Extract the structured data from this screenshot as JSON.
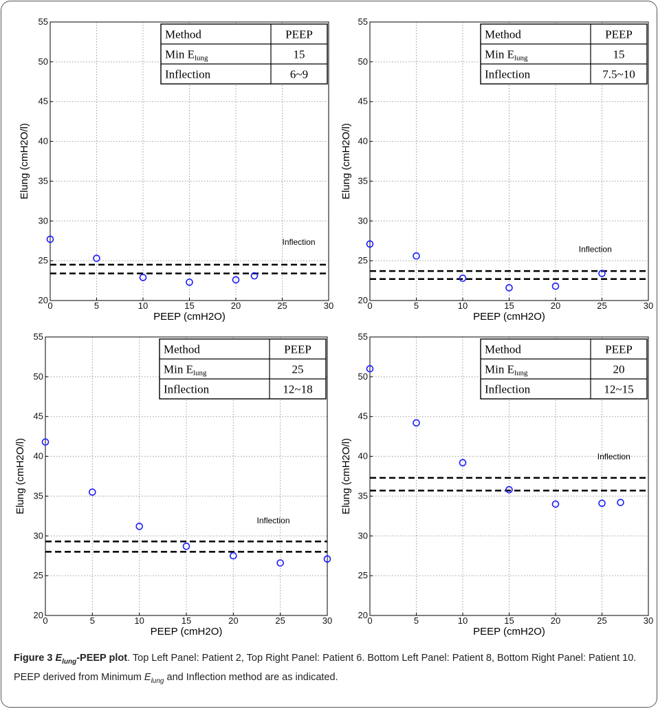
{
  "chart_data": [
    {
      "type": "scatter",
      "panel": "top-left",
      "xlabel": "PEEP (cmH2O)",
      "ylabel": "Elung (cmH2O/l)",
      "xlim": [
        0,
        30
      ],
      "ylim": [
        20,
        55
      ],
      "xticks": [
        "0",
        "5",
        "10",
        "15",
        "20",
        "25",
        "30"
      ],
      "yticks": [
        "20",
        "25",
        "30",
        "35",
        "40",
        "45",
        "50",
        "55"
      ],
      "grid": true,
      "points": [
        [
          0,
          27.7
        ],
        [
          5,
          25.3
        ],
        [
          10,
          22.9
        ],
        [
          15,
          22.3
        ],
        [
          20,
          22.6
        ],
        [
          22,
          23.1
        ]
      ],
      "inflection_lines": [
        24.5,
        23.4
      ],
      "annotation": "Inflection",
      "annotation_pos": [
        25,
        27
      ],
      "table": {
        "header": [
          "Method",
          "PEEP"
        ],
        "min_value": "15",
        "inflection_label": "Inflection",
        "inflection_value": "6~9"
      }
    },
    {
      "type": "scatter",
      "panel": "top-right",
      "xlabel": "PEEP (cmH2O)",
      "ylabel": "Elung (cmH2O/l)",
      "xlim": [
        0,
        30
      ],
      "ylim": [
        20,
        55
      ],
      "xticks": [
        "0",
        "5",
        "10",
        "15",
        "20",
        "25",
        "30"
      ],
      "yticks": [
        "20",
        "25",
        "30",
        "35",
        "40",
        "45",
        "50",
        "55"
      ],
      "grid": true,
      "points": [
        [
          0,
          27.1
        ],
        [
          5,
          25.6
        ],
        [
          10,
          22.8
        ],
        [
          15,
          21.6
        ],
        [
          20,
          21.8
        ],
        [
          25,
          23.4
        ]
      ],
      "inflection_lines": [
        23.7,
        22.7
      ],
      "annotation": "Inflection",
      "annotation_pos": [
        22.5,
        26.1
      ],
      "table": {
        "header": [
          "Method",
          "PEEP"
        ],
        "min_value": "15",
        "inflection_label": "Inflection",
        "inflection_value": "7.5~10"
      }
    },
    {
      "type": "scatter",
      "panel": "bottom-left",
      "xlabel": "PEEP (cmH2O)",
      "ylabel": "Elung (cmH2O/l)",
      "xlim": [
        0,
        30
      ],
      "ylim": [
        20,
        55
      ],
      "xticks": [
        "0",
        "5",
        "10",
        "15",
        "20",
        "25",
        "30"
      ],
      "yticks": [
        "20",
        "25",
        "30",
        "35",
        "40",
        "45",
        "50",
        "55"
      ],
      "grid": true,
      "points": [
        [
          0,
          41.8
        ],
        [
          5,
          35.5
        ],
        [
          10,
          31.2
        ],
        [
          15,
          28.7
        ],
        [
          20,
          27.5
        ],
        [
          25,
          26.6
        ],
        [
          30,
          27.1
        ]
      ],
      "inflection_lines": [
        29.3,
        28.0
      ],
      "annotation": "Inflection",
      "annotation_pos": [
        22.5,
        31.6
      ],
      "table": {
        "header": [
          "Method",
          "PEEP"
        ],
        "min_value": "25",
        "inflection_label": "Inflection",
        "inflection_value": "12~18"
      }
    },
    {
      "type": "scatter",
      "panel": "bottom-right",
      "xlabel": "PEEP (cmH2O)",
      "ylabel": "Elung (cmH2O/l)",
      "xlim": [
        0,
        30
      ],
      "ylim": [
        20,
        55
      ],
      "xticks": [
        "0",
        "5",
        "10",
        "15",
        "20",
        "25",
        "30"
      ],
      "yticks": [
        "20",
        "25",
        "30",
        "35",
        "40",
        "45",
        "50",
        "55"
      ],
      "grid": true,
      "points": [
        [
          0,
          51.0
        ],
        [
          5,
          44.2
        ],
        [
          10,
          39.2
        ],
        [
          15,
          35.8
        ],
        [
          20,
          34.0
        ],
        [
          25,
          34.1
        ],
        [
          27,
          34.2
        ]
      ],
      "inflection_lines": [
        37.3,
        35.7
      ],
      "annotation": "Inflection",
      "annotation_pos": [
        24.5,
        39.6
      ],
      "table": {
        "header": [
          "Method",
          "PEEP"
        ],
        "min_value": "20",
        "inflection_label": "Inflection",
        "inflection_value": "12~15"
      }
    }
  ],
  "table_min_label_main": "Min E",
  "table_min_label_sub": "lung",
  "colors": {
    "marker": "#1a1aff",
    "line": "#000000",
    "grid": "#9a9a9a"
  },
  "caption": {
    "figure_label": "Figure 3",
    "title_italic": "E",
    "title_sub": "lung",
    "title_rest": "-PEEP plot",
    "text_1": ". Top Left Panel: Patient 2, Top Right Panel: Patient 6. Bottom Left Panel: Patient 8, Bottom Right Panel: Patient 10. PEEP derived from Minimum ",
    "text_italic": "E",
    "text_sub": "lung",
    "text_2": " and Inflection method are as indicated."
  }
}
